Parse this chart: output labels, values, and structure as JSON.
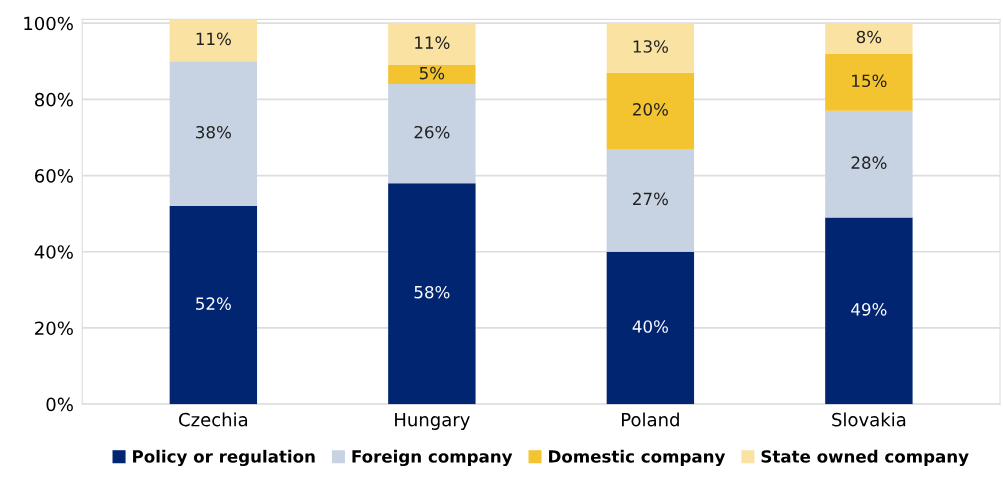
{
  "chart_data": {
    "type": "bar",
    "stacked": true,
    "categories": [
      "Czechia",
      "Hungary",
      "Poland",
      "Slovakia"
    ],
    "series": [
      {
        "name": "Policy or regulation",
        "color": "#022572",
        "values": [
          52,
          58,
          40,
          49
        ],
        "value_labels": [
          "52%",
          "58%",
          "40%",
          "49%"
        ]
      },
      {
        "name": "Foreign company",
        "color": "#c7d3e3",
        "values": [
          38,
          26,
          27,
          28
        ],
        "value_labels": [
          "38%",
          "26%",
          "27%",
          "28%"
        ]
      },
      {
        "name": "Domestic company",
        "color": "#f4c430",
        "values": [
          null,
          5,
          20,
          15
        ],
        "value_labels": [
          null,
          "5%",
          "20%",
          "15%"
        ]
      },
      {
        "name": "State owned company",
        "color": "#fae3a2",
        "values": [
          11,
          11,
          13,
          8
        ],
        "value_labels": [
          "11%",
          "11%",
          "13%",
          "8%"
        ]
      }
    ],
    "ylim": [
      0,
      101
    ],
    "yticks": [
      {
        "value": 0,
        "label": "0%"
      },
      {
        "value": 20,
        "label": "20%"
      },
      {
        "value": 40,
        "label": "40%"
      },
      {
        "value": 60,
        "label": "60%"
      },
      {
        "value": 80,
        "label": "80%"
      },
      {
        "value": 100,
        "label": "100%"
      }
    ],
    "grid": "y",
    "legend": "bottom"
  }
}
